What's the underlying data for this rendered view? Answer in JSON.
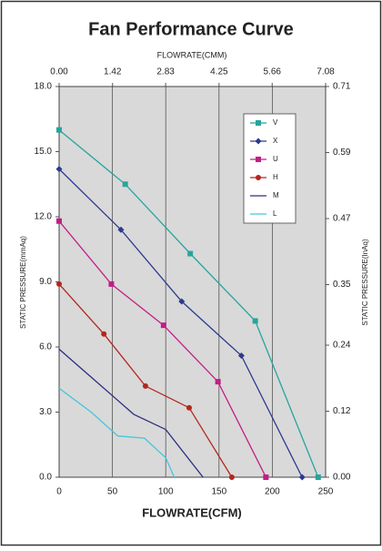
{
  "chart_data": {
    "type": "line",
    "title": "Fan Performance Curve",
    "x_label": "FLOWRATE(CFM)",
    "x2_label": "FLOWRATE(CMM)",
    "y_label": "STATIC PRESSURE(mmAq)",
    "y2_label": "STATIC PRESSURE(InAq)",
    "xlim": [
      0,
      250
    ],
    "xticks": [
      0,
      50,
      100,
      150,
      200,
      250
    ],
    "x2lim": [
      0,
      7.08
    ],
    "x2ticks": [
      {
        "value": 0,
        "label": "0.00"
      },
      1.42,
      2.83,
      4.25,
      5.66,
      7.08
    ],
    "ylim": [
      0,
      18
    ],
    "yticks": [
      {
        "value": 0,
        "label": "0.0"
      },
      {
        "value": 3,
        "label": "3.0"
      },
      {
        "value": 6,
        "label": "6.0"
      },
      {
        "value": 9,
        "label": "9.0"
      },
      {
        "value": 12,
        "label": "12.0"
      },
      {
        "value": 15,
        "label": "15.0"
      },
      {
        "value": 18,
        "label": "18.0"
      }
    ],
    "y2lim": [
      0,
      0.71
    ],
    "y2ticks": [
      {
        "value": 0,
        "label": "0.00"
      },
      0.12,
      0.24,
      0.35,
      0.47,
      0.59,
      0.71
    ],
    "grid": true,
    "legend": "upper right",
    "series": [
      {
        "name": "V",
        "color": "#26a59d",
        "marker": "square",
        "x": [
          0,
          62,
          123,
          184,
          243
        ],
        "values": [
          16.0,
          13.5,
          10.3,
          7.2,
          0
        ]
      },
      {
        "name": "X",
        "color": "#2b3a8f",
        "marker": "diamond",
        "x": [
          0,
          58,
          115,
          171,
          228
        ],
        "values": [
          14.2,
          11.4,
          8.1,
          5.6,
          0
        ]
      },
      {
        "name": "U",
        "color": "#c21d86",
        "marker": "square",
        "x": [
          0,
          49,
          98,
          149,
          194
        ],
        "values": [
          11.8,
          8.9,
          7.0,
          4.4,
          0
        ]
      },
      {
        "name": "H",
        "color": "#b3261e",
        "marker": "circle",
        "x": [
          0,
          42,
          81,
          122,
          162
        ],
        "values": [
          8.9,
          6.6,
          4.2,
          3.2,
          0
        ]
      },
      {
        "name": "M",
        "color": "#2a2f7f",
        "x": [
          0,
          35,
          70,
          100,
          135
        ],
        "values": [
          5.9,
          4.4,
          2.9,
          2.2,
          0
        ]
      },
      {
        "name": "L",
        "color": "#45c6dc",
        "x": [
          0,
          30,
          55,
          80,
          100,
          108
        ],
        "values": [
          4.1,
          3.0,
          1.9,
          1.8,
          0.9,
          0
        ]
      }
    ]
  }
}
